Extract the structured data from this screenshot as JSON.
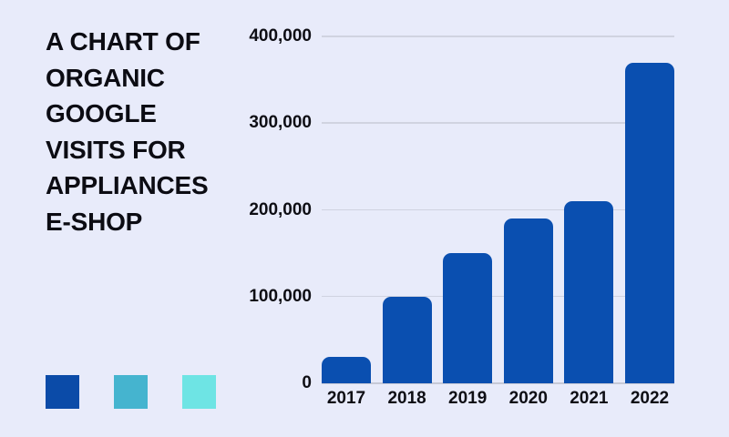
{
  "page": {
    "background": "#e8ebfa"
  },
  "title": {
    "text": "A CHART OF ORGANIC GOOGLE VISITS FOR APPLIANCES E-SHOP",
    "lines": [
      "A CHART OF",
      "ORGANIC",
      "GOOGLE",
      "VISITS FOR",
      "APPLIANCES",
      "E-SHOP"
    ],
    "color": "#0c0c13"
  },
  "palette": [
    {
      "name": "dark-blue",
      "color": "#0b4ba8"
    },
    {
      "name": "teal-blue",
      "color": "#45b4cf"
    },
    {
      "name": "light-cyan",
      "color": "#6ee4e4"
    }
  ],
  "chart_data": {
    "type": "bar",
    "title": "A CHART OF ORGANIC GOOGLE VISITS FOR APPLIANCES E-SHOP",
    "categories": [
      "2017",
      "2018",
      "2019",
      "2020",
      "2021",
      "2022"
    ],
    "values": [
      30000,
      100000,
      150000,
      190000,
      210000,
      370000
    ],
    "xlabel": "",
    "ylabel": "",
    "ylim": [
      0,
      400000
    ],
    "y_ticks": [
      {
        "value": 0,
        "label": "0"
      },
      {
        "value": 100000,
        "label": "100,000"
      },
      {
        "value": 200000,
        "label": "200,000"
      },
      {
        "value": 300000,
        "label": "300,000"
      },
      {
        "value": 400000,
        "label": "400,000"
      }
    ],
    "grid": true,
    "legend_position": "none",
    "bar_color": "#0a4fb0",
    "gridline_color": "#d0d3e0",
    "baseline_color": "#c6c9d6",
    "axis_label_color": "#0e0e14"
  }
}
